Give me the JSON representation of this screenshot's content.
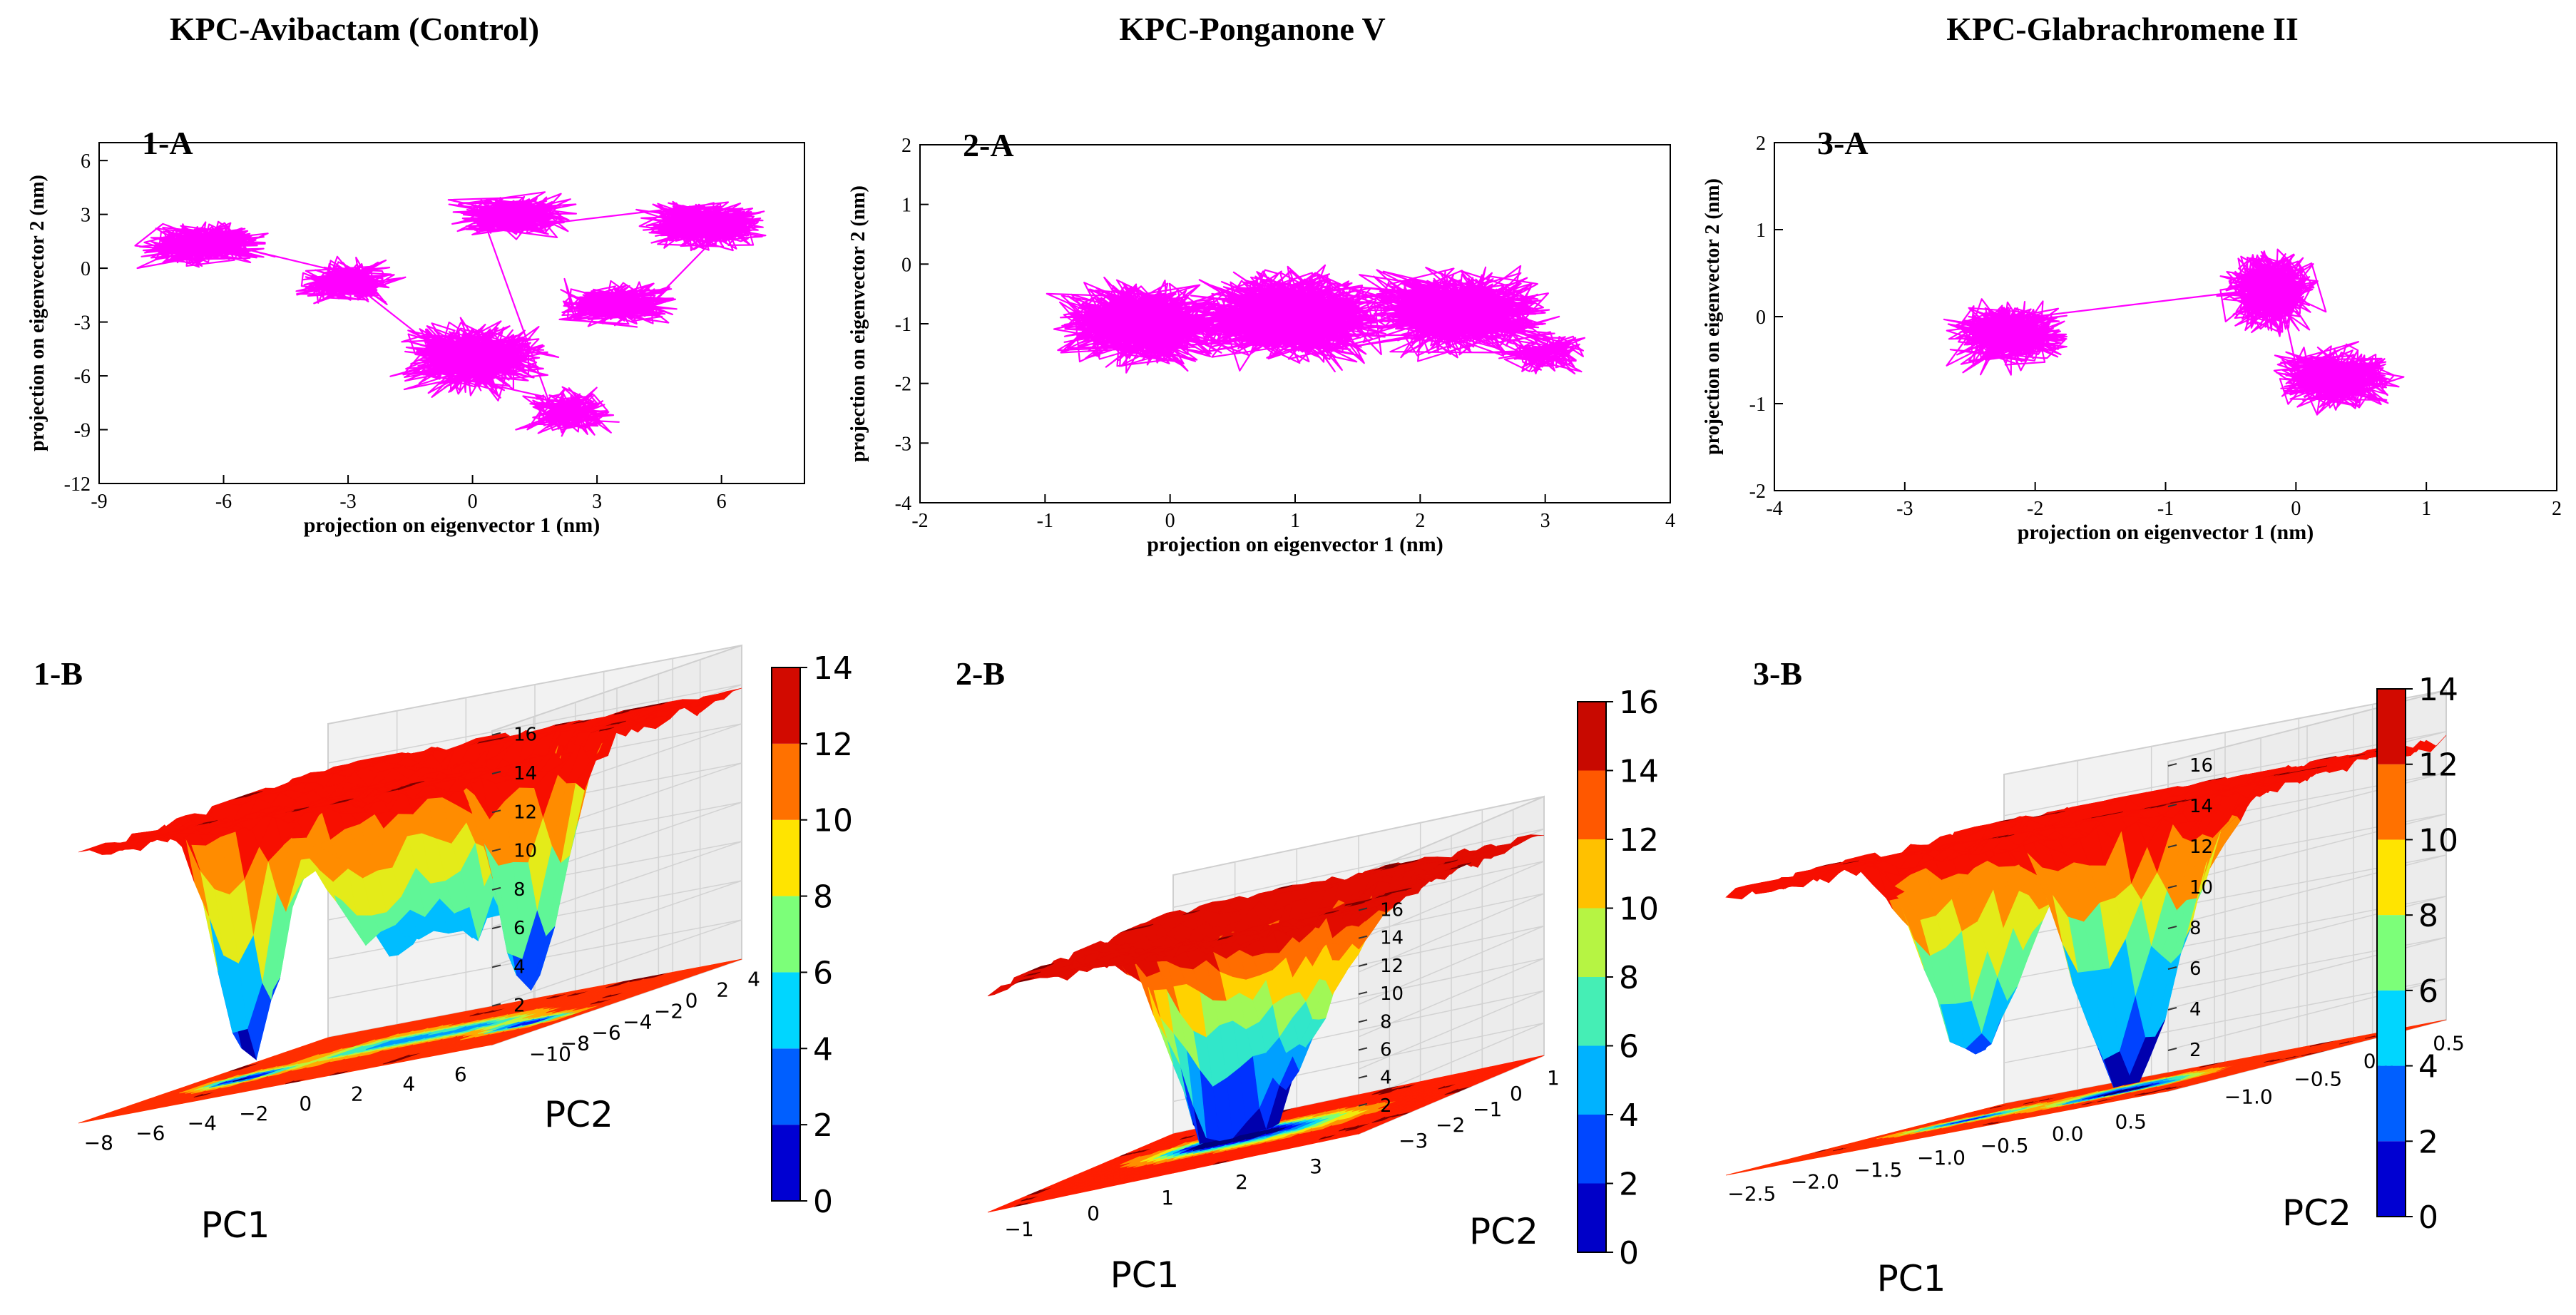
{
  "titles": [
    "KPC-Avibactam  (Control)",
    "KPC-Ponganone V",
    "KPC-Glabrachromene II"
  ],
  "chart_data": [
    {
      "type": "line",
      "panel_label": "1-A",
      "xlabel": "projection on eigenvector 1 (nm)",
      "ylabel": "projection on eigenvector 2 (nm)",
      "xlim": [
        -9,
        8
      ],
      "ylim": [
        -12,
        7
      ],
      "xticks": [
        -9,
        -6,
        -3,
        0,
        3,
        6
      ],
      "yticks": [
        -12,
        -9,
        -6,
        -3,
        0,
        3,
        6
      ],
      "color": "#ff00ff",
      "clusters": [
        {
          "cx": -6.5,
          "cy": 1.3,
          "rx": 1.9,
          "ry": 1.5,
          "n": 450
        },
        {
          "cx": -3.0,
          "cy": -0.8,
          "rx": 1.6,
          "ry": 1.6,
          "n": 300
        },
        {
          "cx": 0.0,
          "cy": -5.0,
          "rx": 2.3,
          "ry": 2.6,
          "n": 600
        },
        {
          "cx": 2.3,
          "cy": -8.0,
          "rx": 1.4,
          "ry": 1.8,
          "n": 200
        },
        {
          "cx": 1.0,
          "cy": 3.0,
          "rx": 1.8,
          "ry": 1.5,
          "n": 380
        },
        {
          "cx": 5.6,
          "cy": 2.4,
          "rx": 1.8,
          "ry": 1.8,
          "n": 520
        },
        {
          "cx": 3.5,
          "cy": -2.0,
          "rx": 1.8,
          "ry": 1.5,
          "n": 350
        }
      ]
    },
    {
      "type": "line",
      "panel_label": "2-A",
      "xlabel": "projection on eigenvector 1 (nm)",
      "ylabel": "projection on eigenvector 2 (nm)",
      "xlim": [
        -2,
        4
      ],
      "ylim": [
        -4,
        2
      ],
      "xticks": [
        -2,
        -1,
        0,
        1,
        2,
        3,
        4
      ],
      "yticks": [
        -4,
        -3,
        -2,
        -1,
        0,
        1,
        2
      ],
      "color": "#ff00ff",
      "clusters": [
        {
          "cx": -0.2,
          "cy": -1.0,
          "rx": 0.9,
          "ry": 0.9,
          "n": 800
        },
        {
          "cx": 1.0,
          "cy": -0.9,
          "rx": 1.0,
          "ry": 1.0,
          "n": 900
        },
        {
          "cx": 2.3,
          "cy": -0.8,
          "rx": 0.9,
          "ry": 0.9,
          "n": 800
        },
        {
          "cx": 3.0,
          "cy": -1.5,
          "rx": 0.5,
          "ry": 0.5,
          "n": 150
        }
      ]
    },
    {
      "type": "line",
      "panel_label": "3-A",
      "xlabel": "projection on eigenvector 1 (nm)",
      "ylabel": "projection on eigenvector 2 (nm)",
      "xlim": [
        -4,
        2
      ],
      "ylim": [
        -2,
        2
      ],
      "xticks": [
        -4,
        -3,
        -2,
        -1,
        0,
        1,
        2
      ],
      "yticks": [
        -2,
        -1,
        0,
        1,
        2
      ],
      "color": "#ff00ff",
      "clusters": [
        {
          "cx": -2.2,
          "cy": -0.2,
          "rx": 0.6,
          "ry": 0.5,
          "n": 500
        },
        {
          "cx": -0.2,
          "cy": 0.3,
          "rx": 0.45,
          "ry": 0.6,
          "n": 600
        },
        {
          "cx": 0.3,
          "cy": -0.7,
          "rx": 0.6,
          "ry": 0.45,
          "n": 500
        }
      ]
    },
    {
      "type": "surface3d",
      "panel_label": "1-B",
      "xlabel": "PC1",
      "ylabel": "PC2",
      "xticks": [
        "−8",
        "−6",
        "−4",
        "−2",
        "0",
        "2",
        "4",
        "6"
      ],
      "yticks": [
        "−10",
        "−8",
        "−6",
        "−4",
        "−2",
        "0",
        "2",
        "4"
      ],
      "zticks": [
        "2",
        "4",
        "6",
        "8",
        "10",
        "12",
        "14",
        "16"
      ],
      "colorbar": {
        "ticks": [
          "0",
          "2",
          "4",
          "6",
          "8",
          "10",
          "12",
          "14"
        ],
        "max": 14
      },
      "zmax": 14,
      "basins": [
        {
          "u": 0.2,
          "v": 0.35,
          "s": 0.07,
          "d": 13
        },
        {
          "u": 0.42,
          "v": 0.55,
          "s": 0.12,
          "d": 9
        },
        {
          "u": 0.65,
          "v": 0.55,
          "s": 0.09,
          "d": 8
        },
        {
          "u": 0.85,
          "v": 0.4,
          "s": 0.07,
          "d": 13
        }
      ]
    },
    {
      "type": "surface3d",
      "panel_label": "2-B",
      "xlabel": "PC1",
      "ylabel": "PC2",
      "xticks": [
        "−1",
        "0",
        "1",
        "2",
        "3"
      ],
      "yticks": [
        "−3",
        "−2",
        "−1",
        "0",
        "1"
      ],
      "zticks": [
        "2",
        "4",
        "6",
        "8",
        "10",
        "12",
        "14",
        "16"
      ],
      "colorbar": {
        "ticks": [
          "0",
          "2",
          "4",
          "6",
          "8",
          "10",
          "12",
          "14",
          "16"
        ],
        "max": 16
      },
      "zmax": 16,
      "basins": [
        {
          "u": 0.4,
          "v": 0.55,
          "s": 0.1,
          "d": 15
        },
        {
          "u": 0.58,
          "v": 0.5,
          "s": 0.14,
          "d": 9
        },
        {
          "u": 0.3,
          "v": 0.55,
          "s": 0.12,
          "d": 7
        }
      ]
    },
    {
      "type": "surface3d",
      "panel_label": "3-B",
      "xlabel": "PC1",
      "ylabel": "PC2",
      "xticks": [
        "−2.5",
        "−2.0",
        "−1.5",
        "−1.0",
        "−0.5",
        "0.0",
        "0.5"
      ],
      "yticks": [
        "−1.0",
        "−0.5",
        "0.0",
        "0.5"
      ],
      "zticks": [
        "2",
        "4",
        "6",
        "8",
        "10",
        "12",
        "14",
        "16"
      ],
      "colorbar": {
        "ticks": [
          "0",
          "2",
          "4",
          "6",
          "8",
          "10",
          "12",
          "14"
        ],
        "max": 14
      },
      "zmax": 14,
      "basins": [
        {
          "u": 0.25,
          "v": 0.5,
          "s": 0.1,
          "d": 11
        },
        {
          "u": 0.62,
          "v": 0.45,
          "s": 0.1,
          "d": 14
        },
        {
          "u": 0.55,
          "v": 0.65,
          "s": 0.1,
          "d": 8
        }
      ]
    }
  ]
}
